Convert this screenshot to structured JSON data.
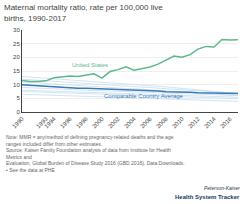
{
  "chart_data": {
    "type": "line",
    "title": "Maternal mortality ratio, rate per 100,000 live births, 1990-2017",
    "x": [
      1990,
      1991,
      1992,
      1993,
      1994,
      1995,
      1996,
      1997,
      1998,
      1999,
      2000,
      2001,
      2002,
      2003,
      2004,
      2005,
      2006,
      2007,
      2008,
      2009,
      2010,
      2011,
      2012,
      2013,
      2014,
      2015,
      2016,
      2017
    ],
    "xlim": [
      1990,
      2017
    ],
    "xticks": [
      1990,
      1993,
      1994,
      1996,
      1998,
      2000,
      2002,
      2004,
      2006,
      2008,
      2010,
      2012,
      2014,
      2016
    ],
    "ylim": [
      0,
      30
    ],
    "yticks": [
      0,
      5,
      10,
      15,
      20,
      25,
      30
    ],
    "grid": true,
    "series": [
      {
        "color": "#c5ddf0",
        "values": [
          9.0,
          8.8,
          8.7,
          8.6,
          8.5,
          8.3,
          8.2,
          8.1,
          8.0,
          7.9,
          7.8,
          7.7,
          7.6,
          7.6,
          7.5,
          7.3,
          7.2,
          7.1,
          6.9,
          6.8,
          6.7,
          6.6,
          6.5,
          6.4,
          6.3,
          6.2,
          6.1,
          6.0
        ]
      },
      {
        "color": "#c5ddf0",
        "values": [
          12.0,
          11.8,
          11.6,
          11.4,
          11.2,
          11.0,
          10.8,
          10.6,
          10.4,
          10.2,
          10.0,
          9.8,
          9.6,
          9.5,
          9.4,
          9.2,
          9.0,
          8.8,
          8.6,
          8.4,
          8.2,
          8.0,
          7.8,
          7.6,
          7.4,
          7.2,
          7.0,
          6.9
        ]
      },
      {
        "color": "#c5ddf0",
        "values": [
          8.0,
          7.9,
          7.8,
          7.7,
          7.6,
          7.5,
          7.4,
          7.3,
          7.2,
          7.1,
          7.0,
          6.9,
          6.8,
          6.8,
          6.7,
          6.6,
          6.5,
          6.4,
          6.3,
          6.2,
          6.1,
          6.0,
          5.9,
          5.8,
          5.7,
          5.6,
          5.5,
          5.4
        ]
      },
      {
        "color": "#c5ddf0",
        "values": [
          11.0,
          10.8,
          10.6,
          10.4,
          10.2,
          10.0,
          9.8,
          9.6,
          9.5,
          9.4,
          9.2,
          9.0,
          8.8,
          8.6,
          8.5,
          8.3,
          8.1,
          7.9,
          7.6,
          7.4,
          7.2,
          7.0,
          6.8,
          6.6,
          6.5,
          6.3,
          6.2,
          6.1
        ]
      },
      {
        "color": "#c5ddf0",
        "values": [
          7.5,
          7.4,
          7.3,
          7.2,
          7.1,
          7.0,
          6.9,
          6.8,
          6.7,
          6.6,
          6.5,
          6.4,
          6.3,
          6.3,
          6.2,
          6.1,
          6.0,
          5.9,
          5.8,
          5.7,
          5.6,
          5.5,
          5.4,
          5.3,
          5.2,
          5.1,
          5.0,
          4.9
        ]
      },
      {
        "color": "#c5ddf0",
        "values": [
          13.0,
          12.8,
          12.5,
          12.3,
          12.1,
          11.9,
          11.7,
          11.5,
          11.3,
          11.1,
          11.0,
          10.8,
          10.6,
          10.4,
          10.2,
          10.0,
          9.8,
          9.5,
          9.2,
          8.9,
          8.6,
          8.3,
          8.0,
          7.7,
          7.4,
          7.2,
          7.0,
          6.8
        ]
      },
      {
        "color": "#c5ddf0",
        "values": [
          6.5,
          6.4,
          6.3,
          6.2,
          6.1,
          6.0,
          5.9,
          5.8,
          5.7,
          5.6,
          5.5,
          5.4,
          5.3,
          5.3,
          5.2,
          5.1,
          5.0,
          4.9,
          4.8,
          4.7,
          4.6,
          4.5,
          4.4,
          4.3,
          4.2,
          4.1,
          4.0,
          3.9
        ]
      },
      {
        "name": "Comparable Country Average",
        "color": "#3a7ab5",
        "values": [
          10.0,
          9.8,
          9.5,
          9.3,
          9.2,
          9.0,
          8.8,
          8.7,
          8.7,
          8.6,
          8.5,
          8.3,
          8.2,
          8.2,
          8.2,
          8.0,
          7.8,
          7.7,
          7.4,
          7.4,
          7.3,
          7.2,
          7.0,
          7.0,
          7.0,
          6.8,
          6.8,
          6.8
        ]
      },
      {
        "name": "United States",
        "color": "#5db88a",
        "values": [
          11.5,
          11.2,
          11.2,
          11.4,
          12.5,
          12.8,
          13.2,
          13.0,
          13.6,
          14.0,
          12.4,
          14.8,
          15.5,
          16.5,
          15.3,
          16.0,
          16.5,
          17.5,
          19.0,
          20.5,
          20.0,
          21.0,
          23.0,
          24.0,
          23.8,
          26.5,
          26.3,
          26.4
        ]
      }
    ],
    "annotations": [
      "Note: MMR = any/method of defining pregnancy-related deaths and the age ranges included differ from other estimates.",
      "Source: Kaiser Family Foundation analysis of data from Institute for Health Metrics and",
      "Evaluation, Global Burden of Disease Study 2016 (GBD 2016). Data Downloads.",
      "• See the data at PHE",
      "Peterson-Kaiser",
      "Health System Tracker"
    ]
  }
}
